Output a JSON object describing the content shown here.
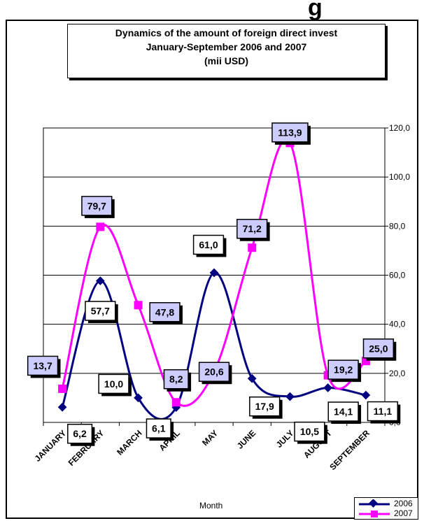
{
  "header_fragment": "g",
  "chart_data": {
    "type": "line",
    "title": "Dynamics of the amount of foreign direct invest",
    "subtitle": "January-September 2006 and  2007",
    "unit": "(mii USD)",
    "xlabel": "Month",
    "ylabel": "",
    "categories": [
      "JANUARY",
      "FEBRUARY",
      "MARCH",
      "APRIL",
      "MAY",
      "JUNE",
      "JULY",
      "AUGUST",
      "SEPTEMBER"
    ],
    "ylim": [
      0,
      120
    ],
    "yticks": [
      "0,0",
      "20,0",
      "40,0",
      "60,0",
      "80,0",
      "100,0",
      "120,0"
    ],
    "grid": true,
    "legend_position": "bottom-right",
    "series": [
      {
        "name": "2006",
        "color": "#000080",
        "marker": "diamond",
        "values": [
          6.2,
          57.7,
          10.0,
          6.1,
          61.0,
          17.9,
          10.5,
          14.1,
          11.1
        ],
        "labels": [
          "6,2",
          "57,7",
          "10,0",
          "6,1",
          "61,0",
          "17,9",
          "10,5",
          "14,1",
          "11,1"
        ]
      },
      {
        "name": "2007",
        "color": "#ff00ff",
        "marker": "square",
        "values": [
          13.7,
          79.7,
          47.8,
          8.2,
          20.6,
          71.2,
          113.9,
          19.2,
          25.0
        ],
        "labels": [
          "13,7",
          "79,7",
          "47,8",
          "8,2",
          "20,6",
          "71,2",
          "113,9",
          "19,2",
          "25,0"
        ]
      }
    ]
  }
}
